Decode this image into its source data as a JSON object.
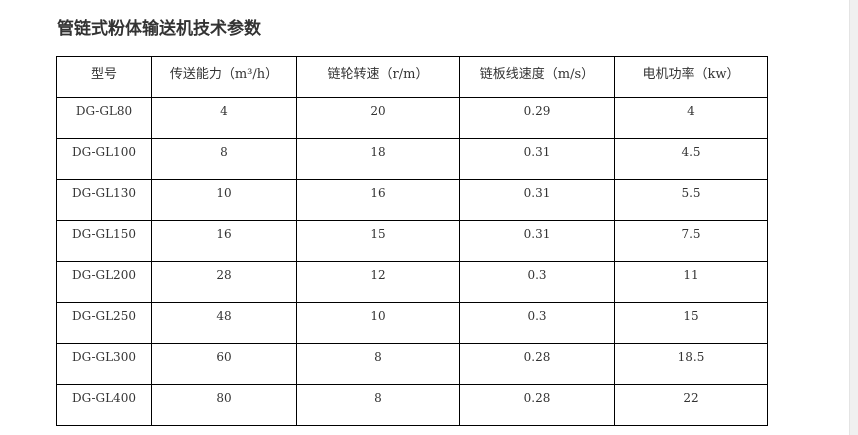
{
  "title": "管链式粉体输送机技术参数",
  "table": {
    "headers": [
      "型号",
      "传送能力（m³/h）",
      "链轮转速（r/m）",
      "链板线速度（m/s）",
      "电机功率（kw）"
    ],
    "rows": [
      [
        "DG-GL80",
        "4",
        "20",
        "0.29",
        "4"
      ],
      [
        "DG-GL100",
        "8",
        "18",
        "0.31",
        "4.5"
      ],
      [
        "DG-GL130",
        "10",
        "16",
        "0.31",
        "5.5"
      ],
      [
        "DG-GL150",
        "16",
        "15",
        "0.31",
        "7.5"
      ],
      [
        "DG-GL200",
        "28",
        "12",
        "0.3",
        "11"
      ],
      [
        "DG-GL250",
        "48",
        "10",
        "0.3",
        "15"
      ],
      [
        "DG-GL300",
        "60",
        "8",
        "0.28",
        "18.5"
      ],
      [
        "DG-GL400",
        "80",
        "8",
        "0.28",
        "22"
      ]
    ]
  }
}
